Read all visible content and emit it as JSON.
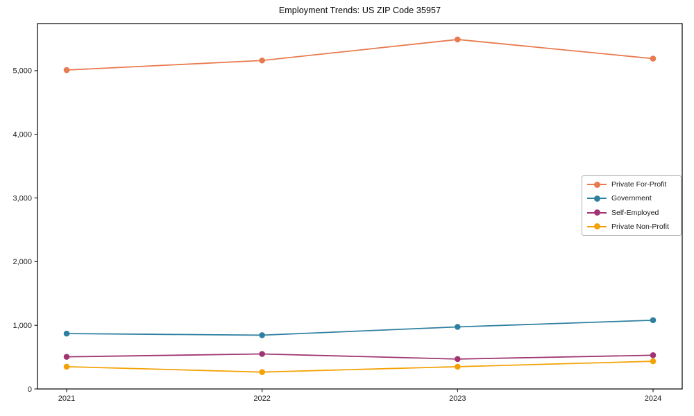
{
  "title": "Employment Trends: US ZIP Code 35957",
  "axis_color": "#000000",
  "tick_label_color": "#1a1a1a",
  "legend_border_color": "#b0b0b0",
  "chart_data": {
    "type": "line",
    "title": "Employment Trends: US ZIP Code 35957",
    "xlabel": "",
    "ylabel": "",
    "categories": [
      "2021",
      "2022",
      "2023",
      "2024"
    ],
    "series": [
      {
        "name": "Private For-Profit",
        "color": "#e87a4f",
        "values": [
          5010,
          5160,
          5490,
          5190
        ]
      },
      {
        "name": "Government",
        "color": "#2f80a0",
        "values": [
          870,
          845,
          975,
          1080
        ]
      },
      {
        "name": "Self-Employed",
        "color": "#a03572",
        "values": [
          505,
          550,
          470,
          530
        ]
      },
      {
        "name": "Private Non-Profit",
        "color": "#f3a206",
        "values": [
          350,
          265,
          350,
          435
        ]
      }
    ],
    "ylim": [
      0,
      5740
    ],
    "yticks": [
      0,
      1000,
      2000,
      3000,
      4000,
      5000
    ],
    "ytick_labels": [
      "0",
      "1,000",
      "2,000",
      "3,000",
      "4,000",
      "5,000"
    ],
    "grid": false,
    "legend_position": "right",
    "marker": "circle"
  }
}
